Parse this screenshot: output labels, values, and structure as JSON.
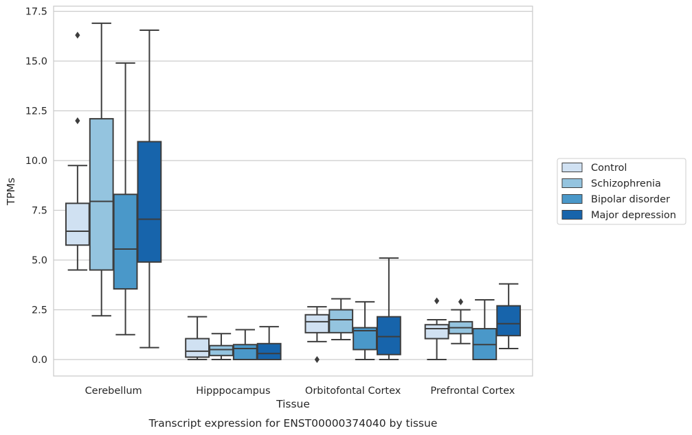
{
  "chart_data": {
    "type": "box",
    "title": "",
    "caption": "Transcript expression for ENST00000374040 by tissue",
    "xlabel": "Tissue",
    "ylabel": "TPMs",
    "ylim": [
      -0.8,
      17.7
    ],
    "yticks": [
      "0.0",
      "2.5",
      "5.0",
      "7.5",
      "10.0",
      "12.5",
      "15.0",
      "17.5"
    ],
    "grid": "horizontal",
    "legend_position": "right-outside",
    "categories": [
      "Cerebellum",
      "Hipppocampus",
      "Orbitofontal Cortex",
      "Prefrontal Cortex"
    ],
    "series": [
      {
        "name": "Control",
        "color": "#d0e1f2",
        "boxes": [
          {
            "whislo": 4.5,
            "q1": 5.75,
            "med": 6.45,
            "q3": 7.85,
            "whishi": 9.75,
            "fliers": [
              12.0,
              16.3
            ]
          },
          {
            "whislo": 0.0,
            "q1": 0.12,
            "med": 0.42,
            "q3": 1.05,
            "whishi": 2.15,
            "fliers": []
          },
          {
            "whislo": 0.9,
            "q1": 1.35,
            "med": 1.9,
            "q3": 2.25,
            "whishi": 2.65,
            "fliers": [
              0.0
            ]
          },
          {
            "whislo": 0.0,
            "q1": 1.05,
            "med": 1.55,
            "q3": 1.75,
            "whishi": 2.0,
            "fliers": [
              2.95
            ]
          }
        ]
      },
      {
        "name": "Schizophrenia",
        "color": "#94c4df",
        "boxes": [
          {
            "whislo": 2.2,
            "q1": 4.5,
            "med": 7.95,
            "q3": 12.1,
            "whishi": 16.9,
            "fliers": []
          },
          {
            "whislo": 0.0,
            "q1": 0.2,
            "med": 0.5,
            "q3": 0.7,
            "whishi": 1.3,
            "fliers": []
          },
          {
            "whislo": 1.0,
            "q1": 1.35,
            "med": 2.0,
            "q3": 2.5,
            "whishi": 3.05,
            "fliers": []
          },
          {
            "whislo": 0.8,
            "q1": 1.3,
            "med": 1.6,
            "q3": 1.9,
            "whishi": 2.5,
            "fliers": [
              2.9
            ]
          }
        ]
      },
      {
        "name": "Bipolar disorder",
        "color": "#4a98c9",
        "boxes": [
          {
            "whislo": 1.25,
            "q1": 3.55,
            "med": 5.55,
            "q3": 8.3,
            "whishi": 14.9,
            "fliers": []
          },
          {
            "whislo": 0.0,
            "q1": 0.0,
            "med": 0.55,
            "q3": 0.75,
            "whishi": 1.5,
            "fliers": []
          },
          {
            "whislo": 0.0,
            "q1": 0.5,
            "med": 1.45,
            "q3": 1.6,
            "whishi": 2.9,
            "fliers": []
          },
          {
            "whislo": 0.0,
            "q1": 0.0,
            "med": 0.75,
            "q3": 1.55,
            "whishi": 3.0,
            "fliers": []
          }
        ]
      },
      {
        "name": "Major depression",
        "color": "#1764ab",
        "boxes": [
          {
            "whislo": 0.6,
            "q1": 4.9,
            "med": 7.05,
            "q3": 10.95,
            "whishi": 16.55,
            "fliers": []
          },
          {
            "whislo": 0.0,
            "q1": 0.0,
            "med": 0.3,
            "q3": 0.8,
            "whishi": 1.65,
            "fliers": []
          },
          {
            "whislo": 0.0,
            "q1": 0.25,
            "med": 1.15,
            "q3": 2.15,
            "whishi": 5.1,
            "fliers": []
          },
          {
            "whislo": 0.55,
            "q1": 1.2,
            "med": 1.8,
            "q3": 2.7,
            "whishi": 3.8,
            "fliers": []
          }
        ]
      }
    ]
  }
}
